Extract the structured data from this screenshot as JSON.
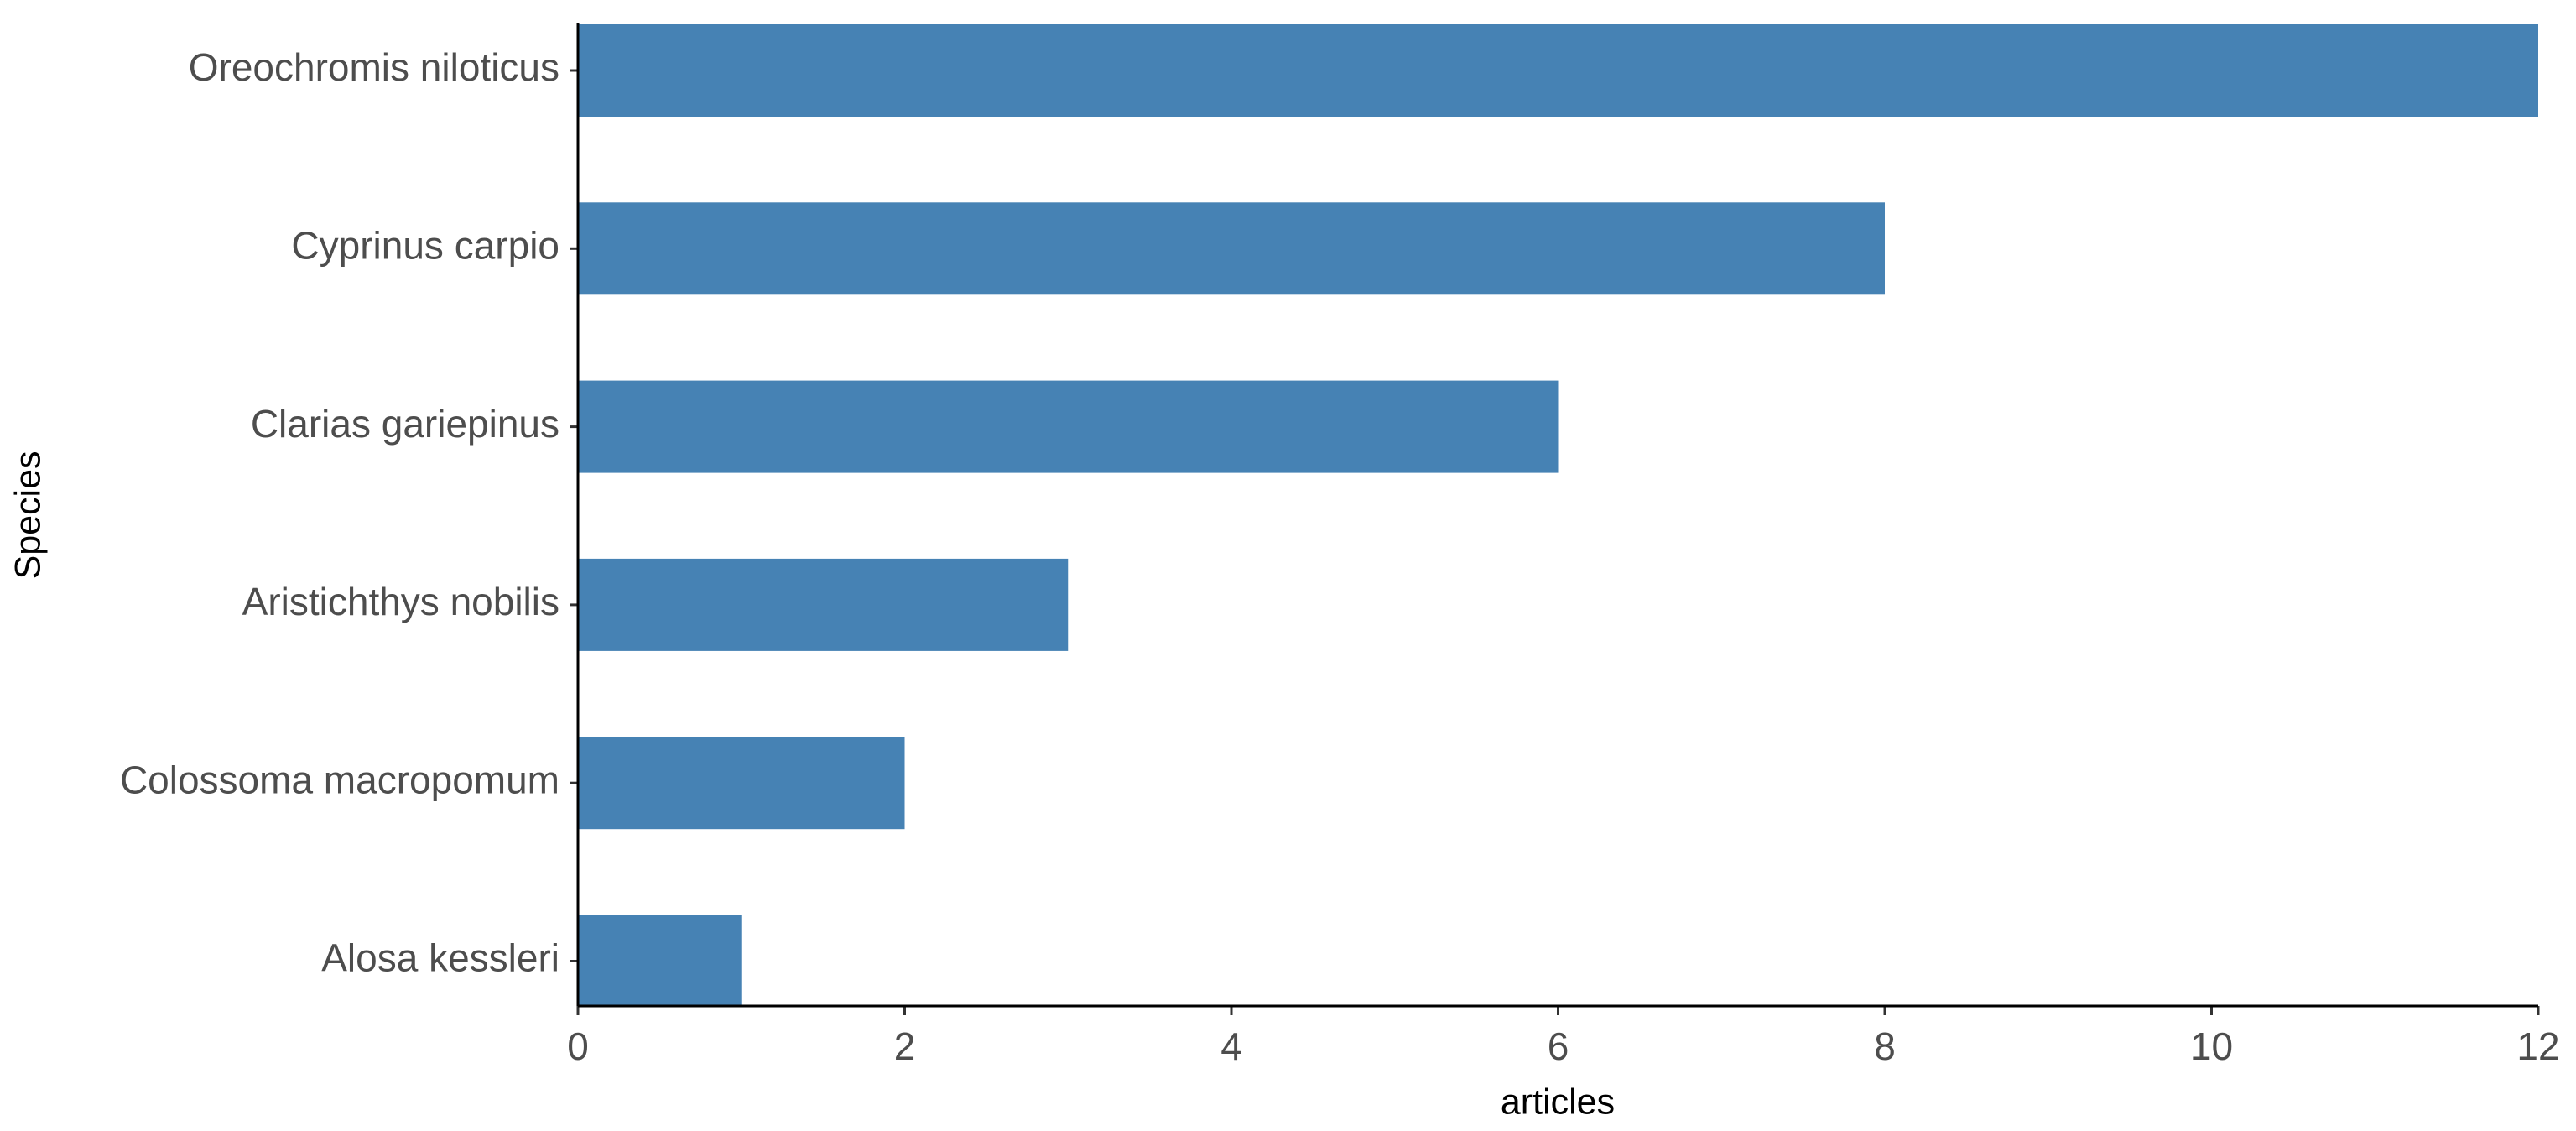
{
  "chart_data": {
    "type": "barh",
    "x_label": "articles",
    "y_label": "Species",
    "categories": [
      "Oreochromis niloticus",
      "Cyprinus carpio",
      "Clarias gariepinus",
      "Aristichthys nobilis",
      "Colossoma macropomum",
      "Alosa kessleri"
    ],
    "values": [
      12,
      8,
      6,
      3,
      2,
      1
    ],
    "color": "#4682b4",
    "xlim": [
      0,
      12
    ],
    "xticks": [
      0,
      2,
      4,
      6,
      8,
      10,
      12
    ],
    "grid": false
  }
}
